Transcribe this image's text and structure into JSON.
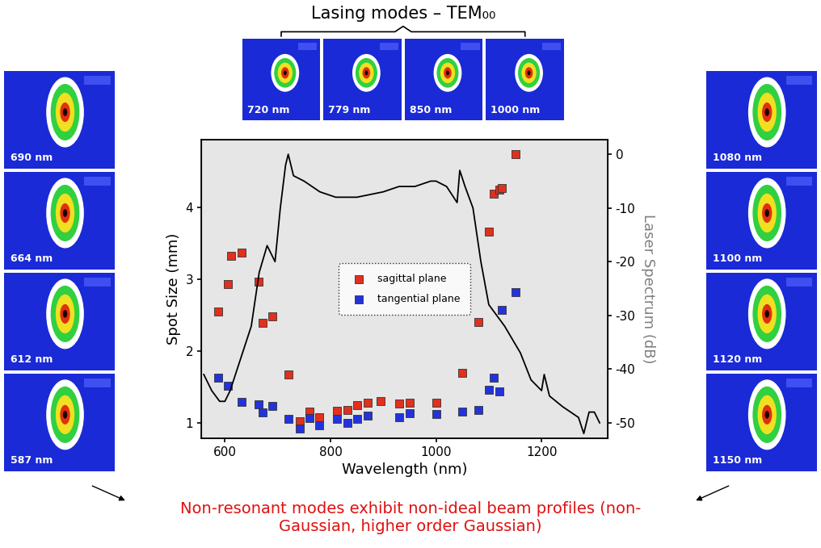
{
  "chart_data": {
    "type": "scatter",
    "x_label": "Wavelength (nm)",
    "y_label": "Spot Size (mm)",
    "y2_label": "Laser Spectrum (dB)",
    "xlim": [
      555,
      1325
    ],
    "xticks": [
      600,
      800,
      1000,
      1200
    ],
    "ylim": [
      0.78,
      4.95
    ],
    "yticks": [
      1,
      2,
      3,
      4
    ],
    "y2lim": [
      -52.9,
      2.7
    ],
    "y2ticks": [
      0,
      -10,
      -20,
      -30,
      -40,
      -50
    ],
    "legend": "center",
    "grid": false,
    "series": [
      {
        "name": "sagittal plane",
        "type": "scatter",
        "marker": "square",
        "color": "#e0301e",
        "x": [
          587,
          605,
          612,
          632,
          664,
          672,
          690,
          720,
          742,
          760,
          779,
          812,
          833,
          850,
          870,
          895,
          930,
          950,
          1000,
          1050,
          1080,
          1100,
          1110,
          1120,
          1125,
          1150
        ],
        "values": [
          2.55,
          2.93,
          3.33,
          3.37,
          2.97,
          2.39,
          2.48,
          1.67,
          1.02,
          1.15,
          1.08,
          1.17,
          1.18,
          1.24,
          1.28,
          1.3,
          1.27,
          1.28,
          1.28,
          1.7,
          2.4,
          3.67,
          4.2,
          4.25,
          4.27,
          4.75
        ]
      },
      {
        "name": "tangential plane",
        "type": "scatter",
        "marker": "square",
        "color": "#2233dd",
        "x": [
          587,
          605,
          632,
          664,
          672,
          690,
          720,
          742,
          760,
          779,
          812,
          833,
          850,
          870,
          930,
          950,
          1000,
          1050,
          1080,
          1100,
          1110,
          1120,
          1125,
          1150
        ],
        "values": [
          1.63,
          1.52,
          1.29,
          1.25,
          1.14,
          1.23,
          1.05,
          0.92,
          1.06,
          0.96,
          1.05,
          1.0,
          1.05,
          1.1,
          1.07,
          1.13,
          1.12,
          1.15,
          1.18,
          1.46,
          1.63,
          1.44,
          2.57,
          2.82
        ]
      },
      {
        "type": "line",
        "axis": "y2",
        "color": "#000000",
        "line_style": "solid",
        "x": [
          560,
          575,
          590,
          600,
          610,
          630,
          650,
          665,
          680,
          695,
          705,
          715,
          720,
          730,
          750,
          780,
          810,
          850,
          900,
          930,
          960,
          990,
          1000,
          1020,
          1040,
          1045,
          1055,
          1070,
          1085,
          1100,
          1130,
          1160,
          1180,
          1190,
          1200,
          1205,
          1215,
          1240,
          1270,
          1280,
          1290,
          1300,
          1310
        ],
        "values": [
          -41,
          -44,
          -46,
          -46,
          -44,
          -38,
          -32,
          -22,
          -17,
          -20,
          -10,
          -2,
          0,
          -4,
          -5,
          -7,
          -8,
          -8,
          -7,
          -6,
          -6,
          -5,
          -5,
          -6,
          -9,
          -3,
          -6,
          -10,
          -20,
          -28,
          -32,
          -37,
          -42,
          -43,
          -44,
          -41,
          -45,
          -47,
          -49,
          -52,
          -48,
          -48,
          -50
        ]
      }
    ]
  },
  "lasing_modes": {
    "title": "Lasing modes – TEM₀₀",
    "profiles": [
      "720 nm",
      "779 nm",
      "850 nm",
      "1000 nm"
    ]
  },
  "left_profiles": [
    "690 nm",
    "664 nm",
    "612 nm",
    "587 nm"
  ],
  "right_profiles": [
    "1080 nm",
    "1100 nm",
    "1120 nm",
    "1150 nm"
  ],
  "caption": "Non-resonant modes exhibit non-ideal beam profiles (non-\nGaussian, higher order Gaussian)"
}
